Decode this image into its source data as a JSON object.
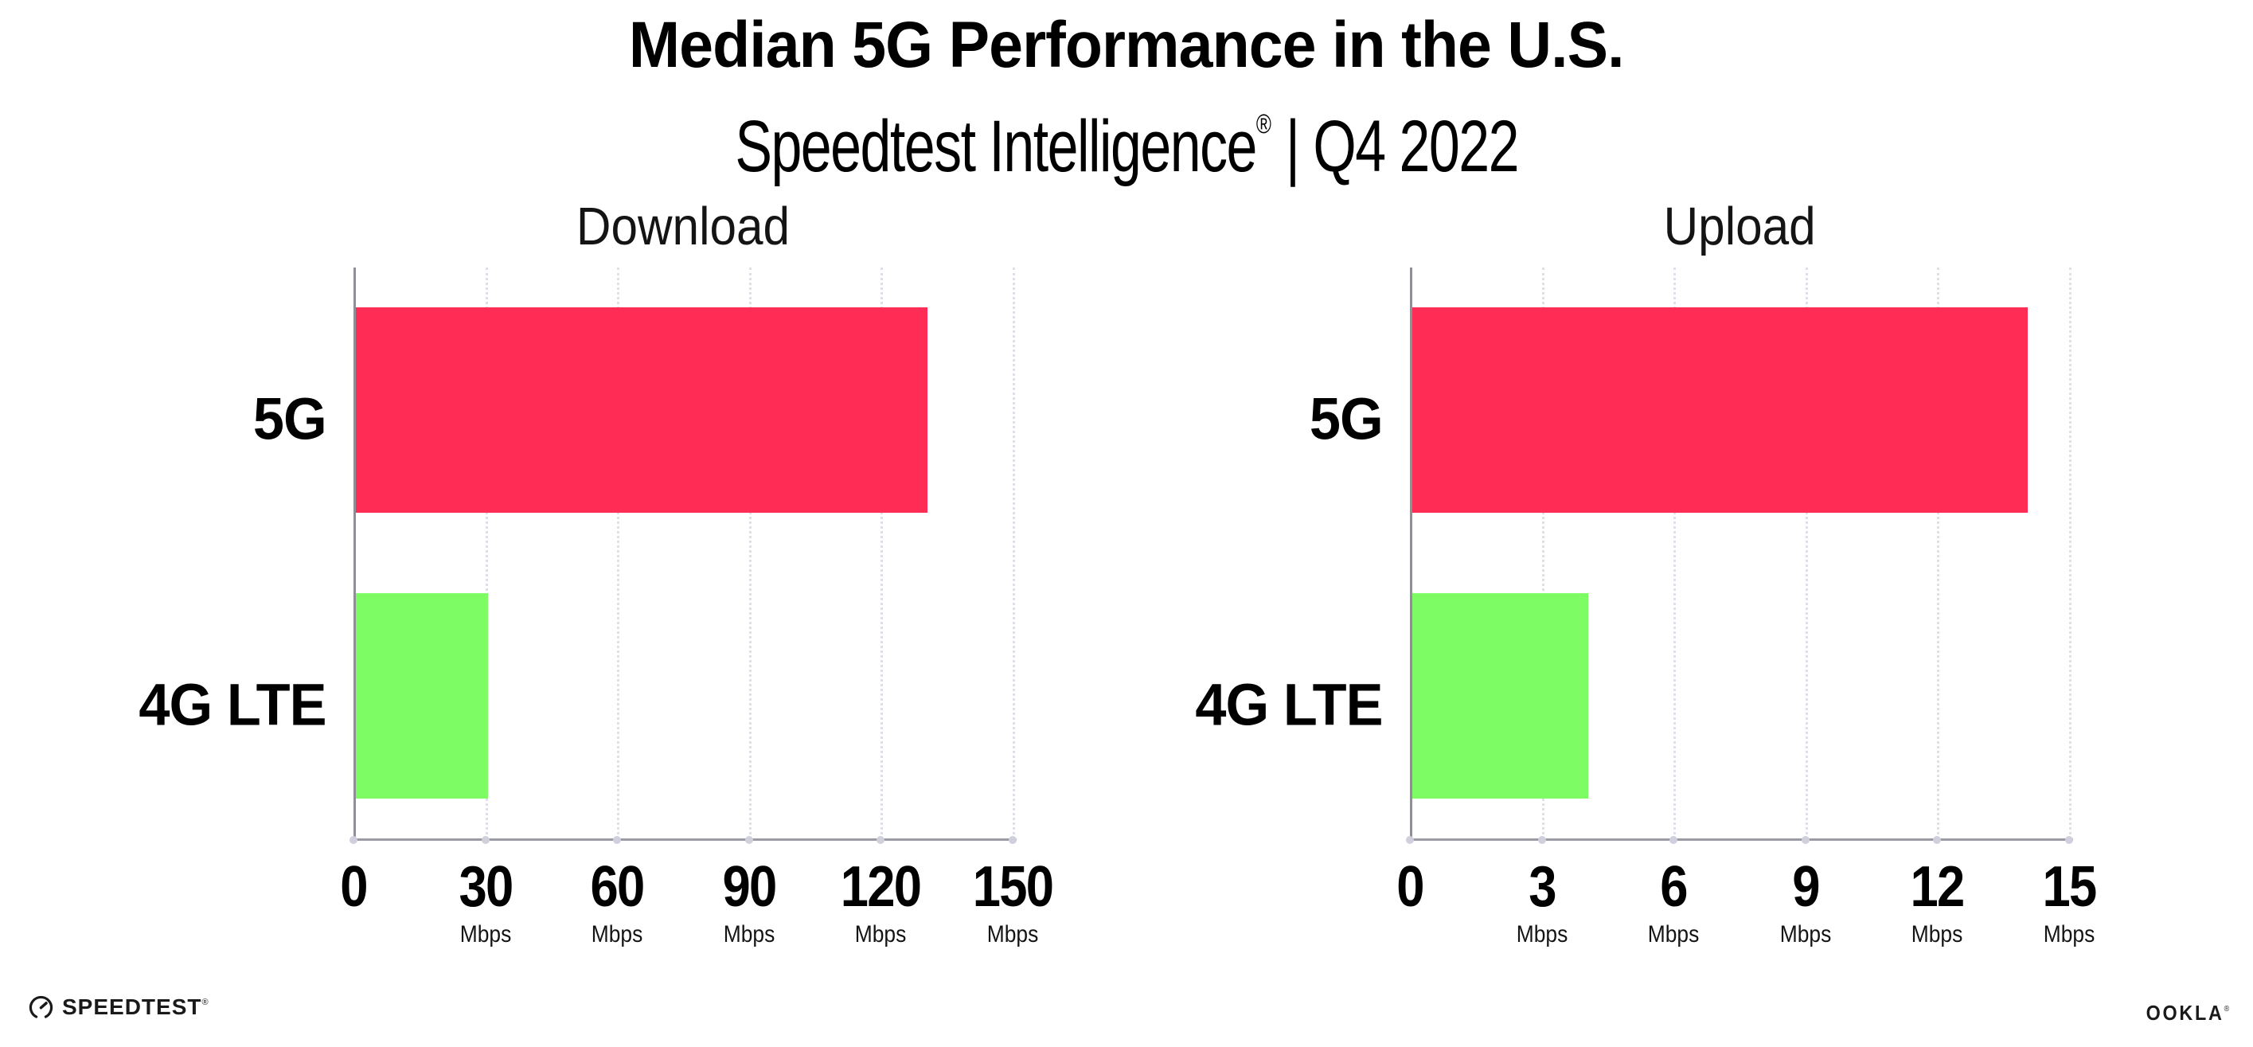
{
  "header": {
    "title": "Median 5G Performance in the U.S.",
    "subtitle_brand": "Speedtest Intelligence",
    "subtitle_reg": "®",
    "subtitle_rest": " | Q4 2022"
  },
  "chart_data": [
    {
      "type": "bar",
      "orientation": "horizontal",
      "title": "Download",
      "categories": [
        "5G",
        "4G LTE"
      ],
      "values": [
        130,
        30
      ],
      "unit": "Mbps",
      "xlim": [
        0,
        150
      ],
      "ticks": [
        0,
        30,
        60,
        90,
        120,
        150
      ],
      "grid": "dotted-vertical",
      "legend": "none"
    },
    {
      "type": "bar",
      "orientation": "horizontal",
      "title": "Upload",
      "categories": [
        "5G",
        "4G LTE"
      ],
      "values": [
        14,
        4
      ],
      "unit": "Mbps",
      "xlim": [
        0,
        15
      ],
      "ticks": [
        0,
        3,
        6,
        9,
        12,
        15
      ],
      "grid": "dotted-vertical",
      "legend": "none"
    }
  ],
  "colors": {
    "category_colors": {
      "5G": "#FF2D55",
      "4G LTE": "#7DFC64"
    },
    "axis": "#9b9ba3",
    "gridline": "#dfdfe9",
    "text": "#000000",
    "background": "#ffffff"
  },
  "footer": {
    "speedtest": {
      "icon": "speedtest-gauge-icon",
      "label": "SPEEDTEST",
      "reg": "®"
    },
    "ookla": {
      "label": "OOKLA",
      "reg": "®"
    }
  }
}
